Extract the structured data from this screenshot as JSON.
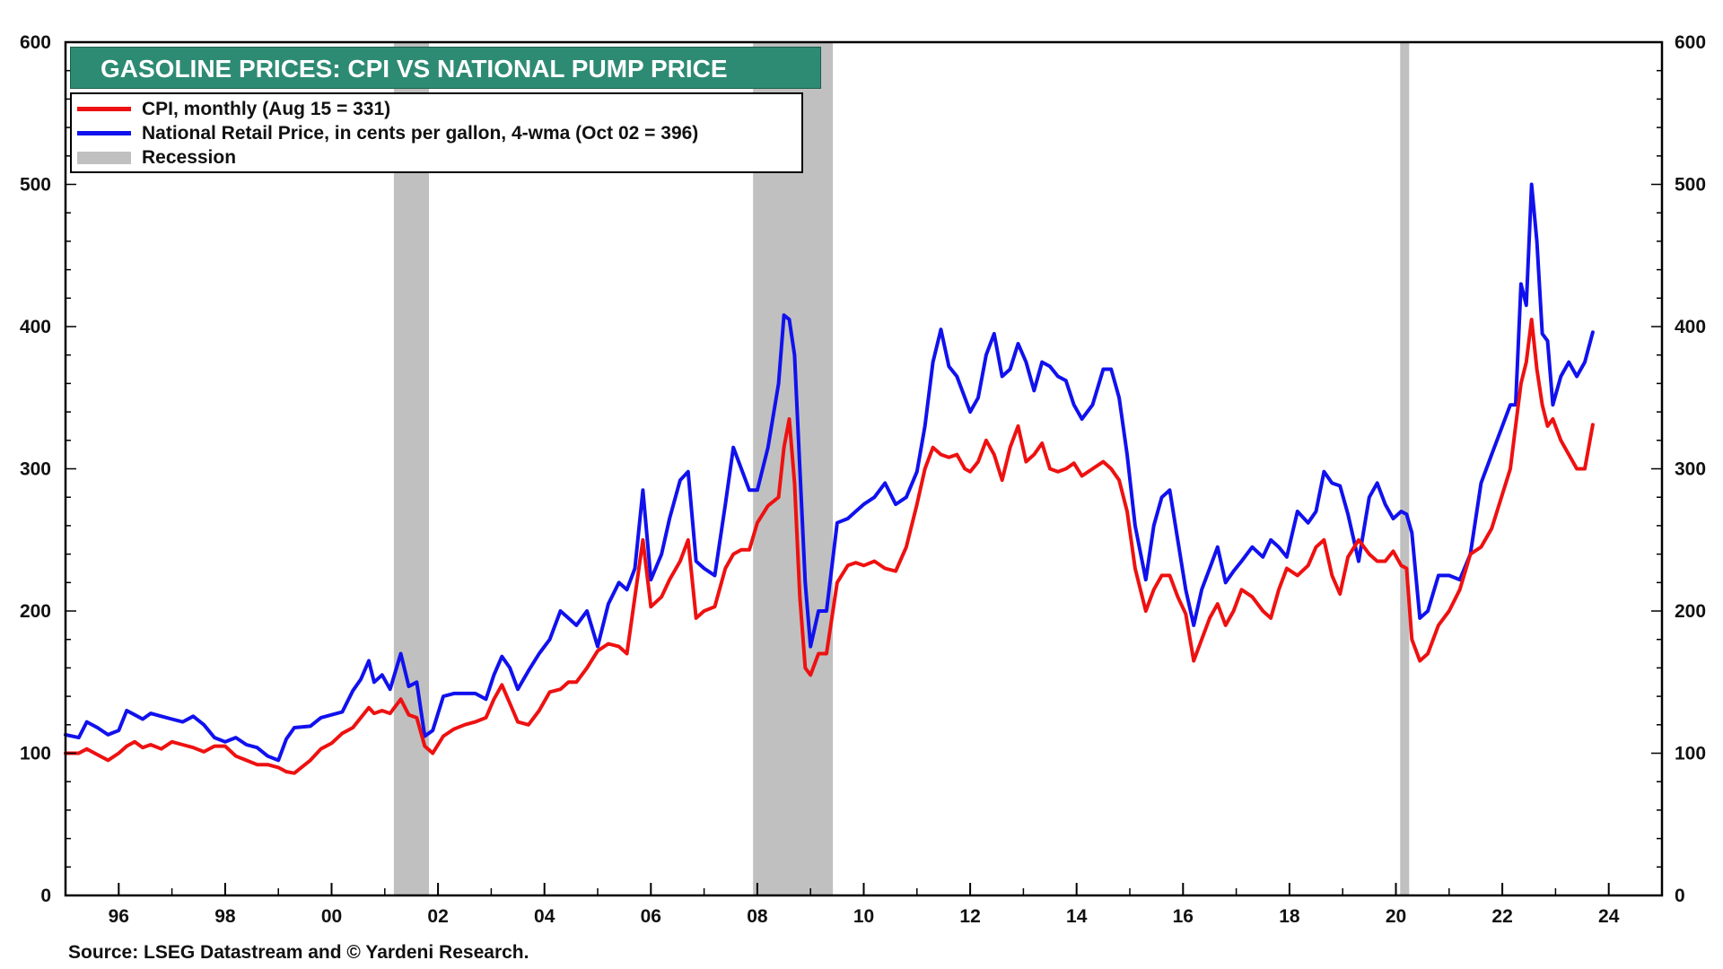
{
  "chart_data": {
    "type": "line",
    "title": "GASOLINE PRICES: CPI VS NATIONAL PUMP PRICE",
    "source": "Source: LSEG Datastream and © Yardeni Research.",
    "xlim": [
      1995.0,
      2025.0
    ],
    "ylim": [
      0,
      600
    ],
    "x_ticks": [
      {
        "value": 1996,
        "label": "96"
      },
      {
        "value": 1998,
        "label": "98"
      },
      {
        "value": 2000,
        "label": "00"
      },
      {
        "value": 2002,
        "label": "02"
      },
      {
        "value": 2004,
        "label": "04"
      },
      {
        "value": 2006,
        "label": "06"
      },
      {
        "value": 2008,
        "label": "08"
      },
      {
        "value": 2010,
        "label": "10"
      },
      {
        "value": 2012,
        "label": "12"
      },
      {
        "value": 2014,
        "label": "14"
      },
      {
        "value": 2016,
        "label": "16"
      },
      {
        "value": 2018,
        "label": "18"
      },
      {
        "value": 2020,
        "label": "20"
      },
      {
        "value": 2022,
        "label": "22"
      },
      {
        "value": 2024,
        "label": "24"
      }
    ],
    "y_ticks_left": [
      {
        "value": 0,
        "label": "0"
      },
      {
        "value": 100,
        "label": "100"
      },
      {
        "value": 200,
        "label": "200"
      },
      {
        "value": 300,
        "label": "300"
      },
      {
        "value": 400,
        "label": "400"
      },
      {
        "value": 500,
        "label": "500"
      },
      {
        "value": 600,
        "label": "600"
      }
    ],
    "y_ticks_right": [
      {
        "value": 0,
        "label": "0"
      },
      {
        "value": 100,
        "label": "100"
      },
      {
        "value": 200,
        "label": "200"
      },
      {
        "value": 300,
        "label": "300"
      },
      {
        "value": 400,
        "label": "400"
      },
      {
        "value": 500,
        "label": "500"
      },
      {
        "value": 600,
        "label": "600"
      }
    ],
    "recessions": [
      {
        "start": 2001.17,
        "end": 2001.83
      },
      {
        "start": 2007.92,
        "end": 2009.42
      },
      {
        "start": 2020.08,
        "end": 2020.25
      }
    ],
    "legend": [
      {
        "label": "CPI, monthly (Aug 15 = 331)",
        "color": "#ee1111",
        "kind": "line"
      },
      {
        "label": "National Retail Price, in cents per gallon, 4-wma (Oct 02 = 396)",
        "color": "#1111ee",
        "kind": "line"
      },
      {
        "label": "Recession",
        "color": "#c0c0c0",
        "kind": "block"
      }
    ],
    "series": [
      {
        "name": "National Retail Price, in cents per gallon, 4-wma",
        "color": "#1111ee",
        "x": [
          1995.0,
          1995.25,
          1995.4,
          1995.6,
          1995.8,
          1996.0,
          1996.15,
          1996.3,
          1996.45,
          1996.6,
          1996.8,
          1997.0,
          1997.2,
          1997.4,
          1997.6,
          1997.8,
          1998.0,
          1998.2,
          1998.4,
          1998.6,
          1998.8,
          1999.0,
          1999.15,
          1999.3,
          1999.6,
          1999.8,
          2000.0,
          2000.2,
          2000.4,
          2000.55,
          2000.7,
          2000.8,
          2000.95,
          2001.1,
          2001.3,
          2001.45,
          2001.6,
          2001.75,
          2001.9,
          2002.1,
          2002.3,
          2002.5,
          2002.7,
          2002.9,
          2003.05,
          2003.2,
          2003.35,
          2003.5,
          2003.7,
          2003.9,
          2004.1,
          2004.3,
          2004.45,
          2004.6,
          2004.8,
          2005.0,
          2005.2,
          2005.4,
          2005.55,
          2005.7,
          2005.85,
          2006.0,
          2006.2,
          2006.35,
          2006.55,
          2006.7,
          2006.85,
          2007.0,
          2007.2,
          2007.4,
          2007.55,
          2007.7,
          2007.85,
          2008.0,
          2008.2,
          2008.4,
          2008.5,
          2008.6,
          2008.7,
          2008.8,
          2008.9,
          2009.0,
          2009.15,
          2009.3,
          2009.5,
          2009.7,
          2009.85,
          2010.0,
          2010.2,
          2010.4,
          2010.6,
          2010.8,
          2011.0,
          2011.15,
          2011.3,
          2011.45,
          2011.6,
          2011.75,
          2011.9,
          2012.0,
          2012.15,
          2012.3,
          2012.45,
          2012.6,
          2012.75,
          2012.9,
          2013.05,
          2013.2,
          2013.35,
          2013.5,
          2013.65,
          2013.8,
          2013.95,
          2014.1,
          2014.3,
          2014.5,
          2014.65,
          2014.8,
          2014.95,
          2015.1,
          2015.3,
          2015.45,
          2015.6,
          2015.75,
          2015.9,
          2016.05,
          2016.2,
          2016.35,
          2016.5,
          2016.65,
          2016.8,
          2016.95,
          2017.1,
          2017.3,
          2017.5,
          2017.65,
          2017.8,
          2017.95,
          2018.15,
          2018.35,
          2018.5,
          2018.65,
          2018.8,
          2018.95,
          2019.1,
          2019.3,
          2019.5,
          2019.65,
          2019.8,
          2019.95,
          2020.1,
          2020.2,
          2020.3,
          2020.45,
          2020.6,
          2020.8,
          2021.0,
          2021.2,
          2021.4,
          2021.6,
          2021.8,
          2022.0,
          2022.15,
          2022.25,
          2022.35,
          2022.45,
          2022.55,
          2022.65,
          2022.75,
          2022.85,
          2022.95,
          2023.1,
          2023.25,
          2023.4,
          2023.55,
          2023.7
        ],
        "values": [
          113,
          111,
          122,
          118,
          113,
          116,
          130,
          127,
          124,
          128,
          126,
          124,
          122,
          126,
          120,
          111,
          108,
          111,
          106,
          104,
          98,
          95,
          110,
          118,
          119,
          125,
          127,
          129,
          144,
          152,
          165,
          150,
          155,
          145,
          170,
          147,
          150,
          112,
          116,
          140,
          142,
          142,
          142,
          138,
          155,
          168,
          160,
          145,
          158,
          170,
          180,
          200,
          195,
          190,
          200,
          175,
          205,
          220,
          215,
          230,
          285,
          222,
          240,
          265,
          292,
          298,
          235,
          230,
          225,
          275,
          315,
          300,
          285,
          285,
          315,
          360,
          408,
          405,
          380,
          300,
          220,
          175,
          200,
          200,
          262,
          265,
          270,
          275,
          280,
          290,
          275,
          280,
          298,
          330,
          375,
          398,
          372,
          365,
          350,
          340,
          350,
          380,
          395,
          365,
          370,
          388,
          375,
          355,
          375,
          372,
          365,
          362,
          345,
          335,
          345,
          370,
          370,
          350,
          310,
          260,
          222,
          260,
          280,
          285,
          250,
          215,
          190,
          215,
          230,
          245,
          220,
          228,
          235,
          245,
          238,
          250,
          245,
          238,
          270,
          262,
          270,
          298,
          290,
          288,
          268,
          235,
          280,
          290,
          275,
          265,
          270,
          268,
          255,
          195,
          200,
          225,
          225,
          222,
          240,
          290,
          310,
          330,
          345,
          345,
          430,
          415,
          500,
          460,
          395,
          390,
          345,
          365,
          375,
          365,
          375,
          396
        ]
      },
      {
        "name": "CPI, monthly",
        "color": "#ee1111",
        "x": [
          1995.0,
          1995.25,
          1995.4,
          1995.6,
          1995.8,
          1996.0,
          1996.15,
          1996.3,
          1996.45,
          1996.6,
          1996.8,
          1997.0,
          1997.2,
          1997.4,
          1997.6,
          1997.8,
          1998.0,
          1998.2,
          1998.4,
          1998.6,
          1998.8,
          1999.0,
          1999.15,
          1999.3,
          1999.6,
          1999.8,
          2000.0,
          2000.2,
          2000.4,
          2000.55,
          2000.7,
          2000.8,
          2000.95,
          2001.1,
          2001.3,
          2001.45,
          2001.6,
          2001.75,
          2001.9,
          2002.1,
          2002.3,
          2002.5,
          2002.7,
          2002.9,
          2003.05,
          2003.2,
          2003.35,
          2003.5,
          2003.7,
          2003.9,
          2004.1,
          2004.3,
          2004.45,
          2004.6,
          2004.8,
          2005.0,
          2005.2,
          2005.4,
          2005.55,
          2005.7,
          2005.85,
          2006.0,
          2006.2,
          2006.35,
          2006.55,
          2006.7,
          2006.85,
          2007.0,
          2007.2,
          2007.4,
          2007.55,
          2007.7,
          2007.85,
          2008.0,
          2008.2,
          2008.4,
          2008.5,
          2008.6,
          2008.7,
          2008.8,
          2008.9,
          2009.0,
          2009.15,
          2009.3,
          2009.5,
          2009.7,
          2009.85,
          2010.0,
          2010.2,
          2010.4,
          2010.6,
          2010.8,
          2011.0,
          2011.15,
          2011.3,
          2011.45,
          2011.6,
          2011.75,
          2011.9,
          2012.0,
          2012.15,
          2012.3,
          2012.45,
          2012.6,
          2012.75,
          2012.9,
          2013.05,
          2013.2,
          2013.35,
          2013.5,
          2013.65,
          2013.8,
          2013.95,
          2014.1,
          2014.3,
          2014.5,
          2014.65,
          2014.8,
          2014.95,
          2015.1,
          2015.3,
          2015.45,
          2015.6,
          2015.75,
          2015.9,
          2016.05,
          2016.2,
          2016.35,
          2016.5,
          2016.65,
          2016.8,
          2016.95,
          2017.1,
          2017.3,
          2017.5,
          2017.65,
          2017.8,
          2017.95,
          2018.15,
          2018.35,
          2018.5,
          2018.65,
          2018.8,
          2018.95,
          2019.1,
          2019.3,
          2019.5,
          2019.65,
          2019.8,
          2019.95,
          2020.1,
          2020.2,
          2020.3,
          2020.45,
          2020.6,
          2020.8,
          2021.0,
          2021.2,
          2021.4,
          2021.6,
          2021.8,
          2022.0,
          2022.15,
          2022.25,
          2022.35,
          2022.45,
          2022.55,
          2022.65,
          2022.75,
          2022.85,
          2022.95,
          2023.1,
          2023.25,
          2023.4,
          2023.55,
          2023.7
        ],
        "values": [
          100,
          100,
          103,
          99,
          95,
          100,
          105,
          108,
          104,
          106,
          103,
          108,
          106,
          104,
          101,
          105,
          105,
          98,
          95,
          92,
          92,
          90,
          87,
          86,
          95,
          103,
          107,
          114,
          118,
          125,
          132,
          128,
          130,
          128,
          138,
          127,
          125,
          105,
          100,
          112,
          117,
          120,
          122,
          125,
          138,
          148,
          135,
          122,
          120,
          130,
          143,
          145,
          150,
          150,
          160,
          172,
          177,
          175,
          170,
          210,
          250,
          203,
          210,
          222,
          235,
          250,
          195,
          200,
          203,
          230,
          240,
          243,
          243,
          262,
          274,
          280,
          315,
          335,
          290,
          210,
          160,
          155,
          170,
          170,
          220,
          232,
          234,
          232,
          235,
          230,
          228,
          245,
          275,
          300,
          315,
          310,
          308,
          310,
          300,
          298,
          305,
          320,
          310,
          292,
          315,
          330,
          305,
          310,
          318,
          300,
          298,
          300,
          304,
          295,
          300,
          305,
          300,
          292,
          270,
          230,
          200,
          215,
          225,
          225,
          210,
          198,
          165,
          180,
          195,
          205,
          190,
          200,
          215,
          210,
          200,
          195,
          215,
          230,
          225,
          232,
          245,
          250,
          225,
          212,
          238,
          250,
          240,
          235,
          235,
          242,
          232,
          230,
          180,
          165,
          170,
          190,
          200,
          215,
          240,
          245,
          258,
          282,
          300,
          330,
          360,
          375,
          405,
          370,
          345,
          330,
          335,
          320,
          310,
          300,
          300,
          331
        ]
      }
    ]
  }
}
